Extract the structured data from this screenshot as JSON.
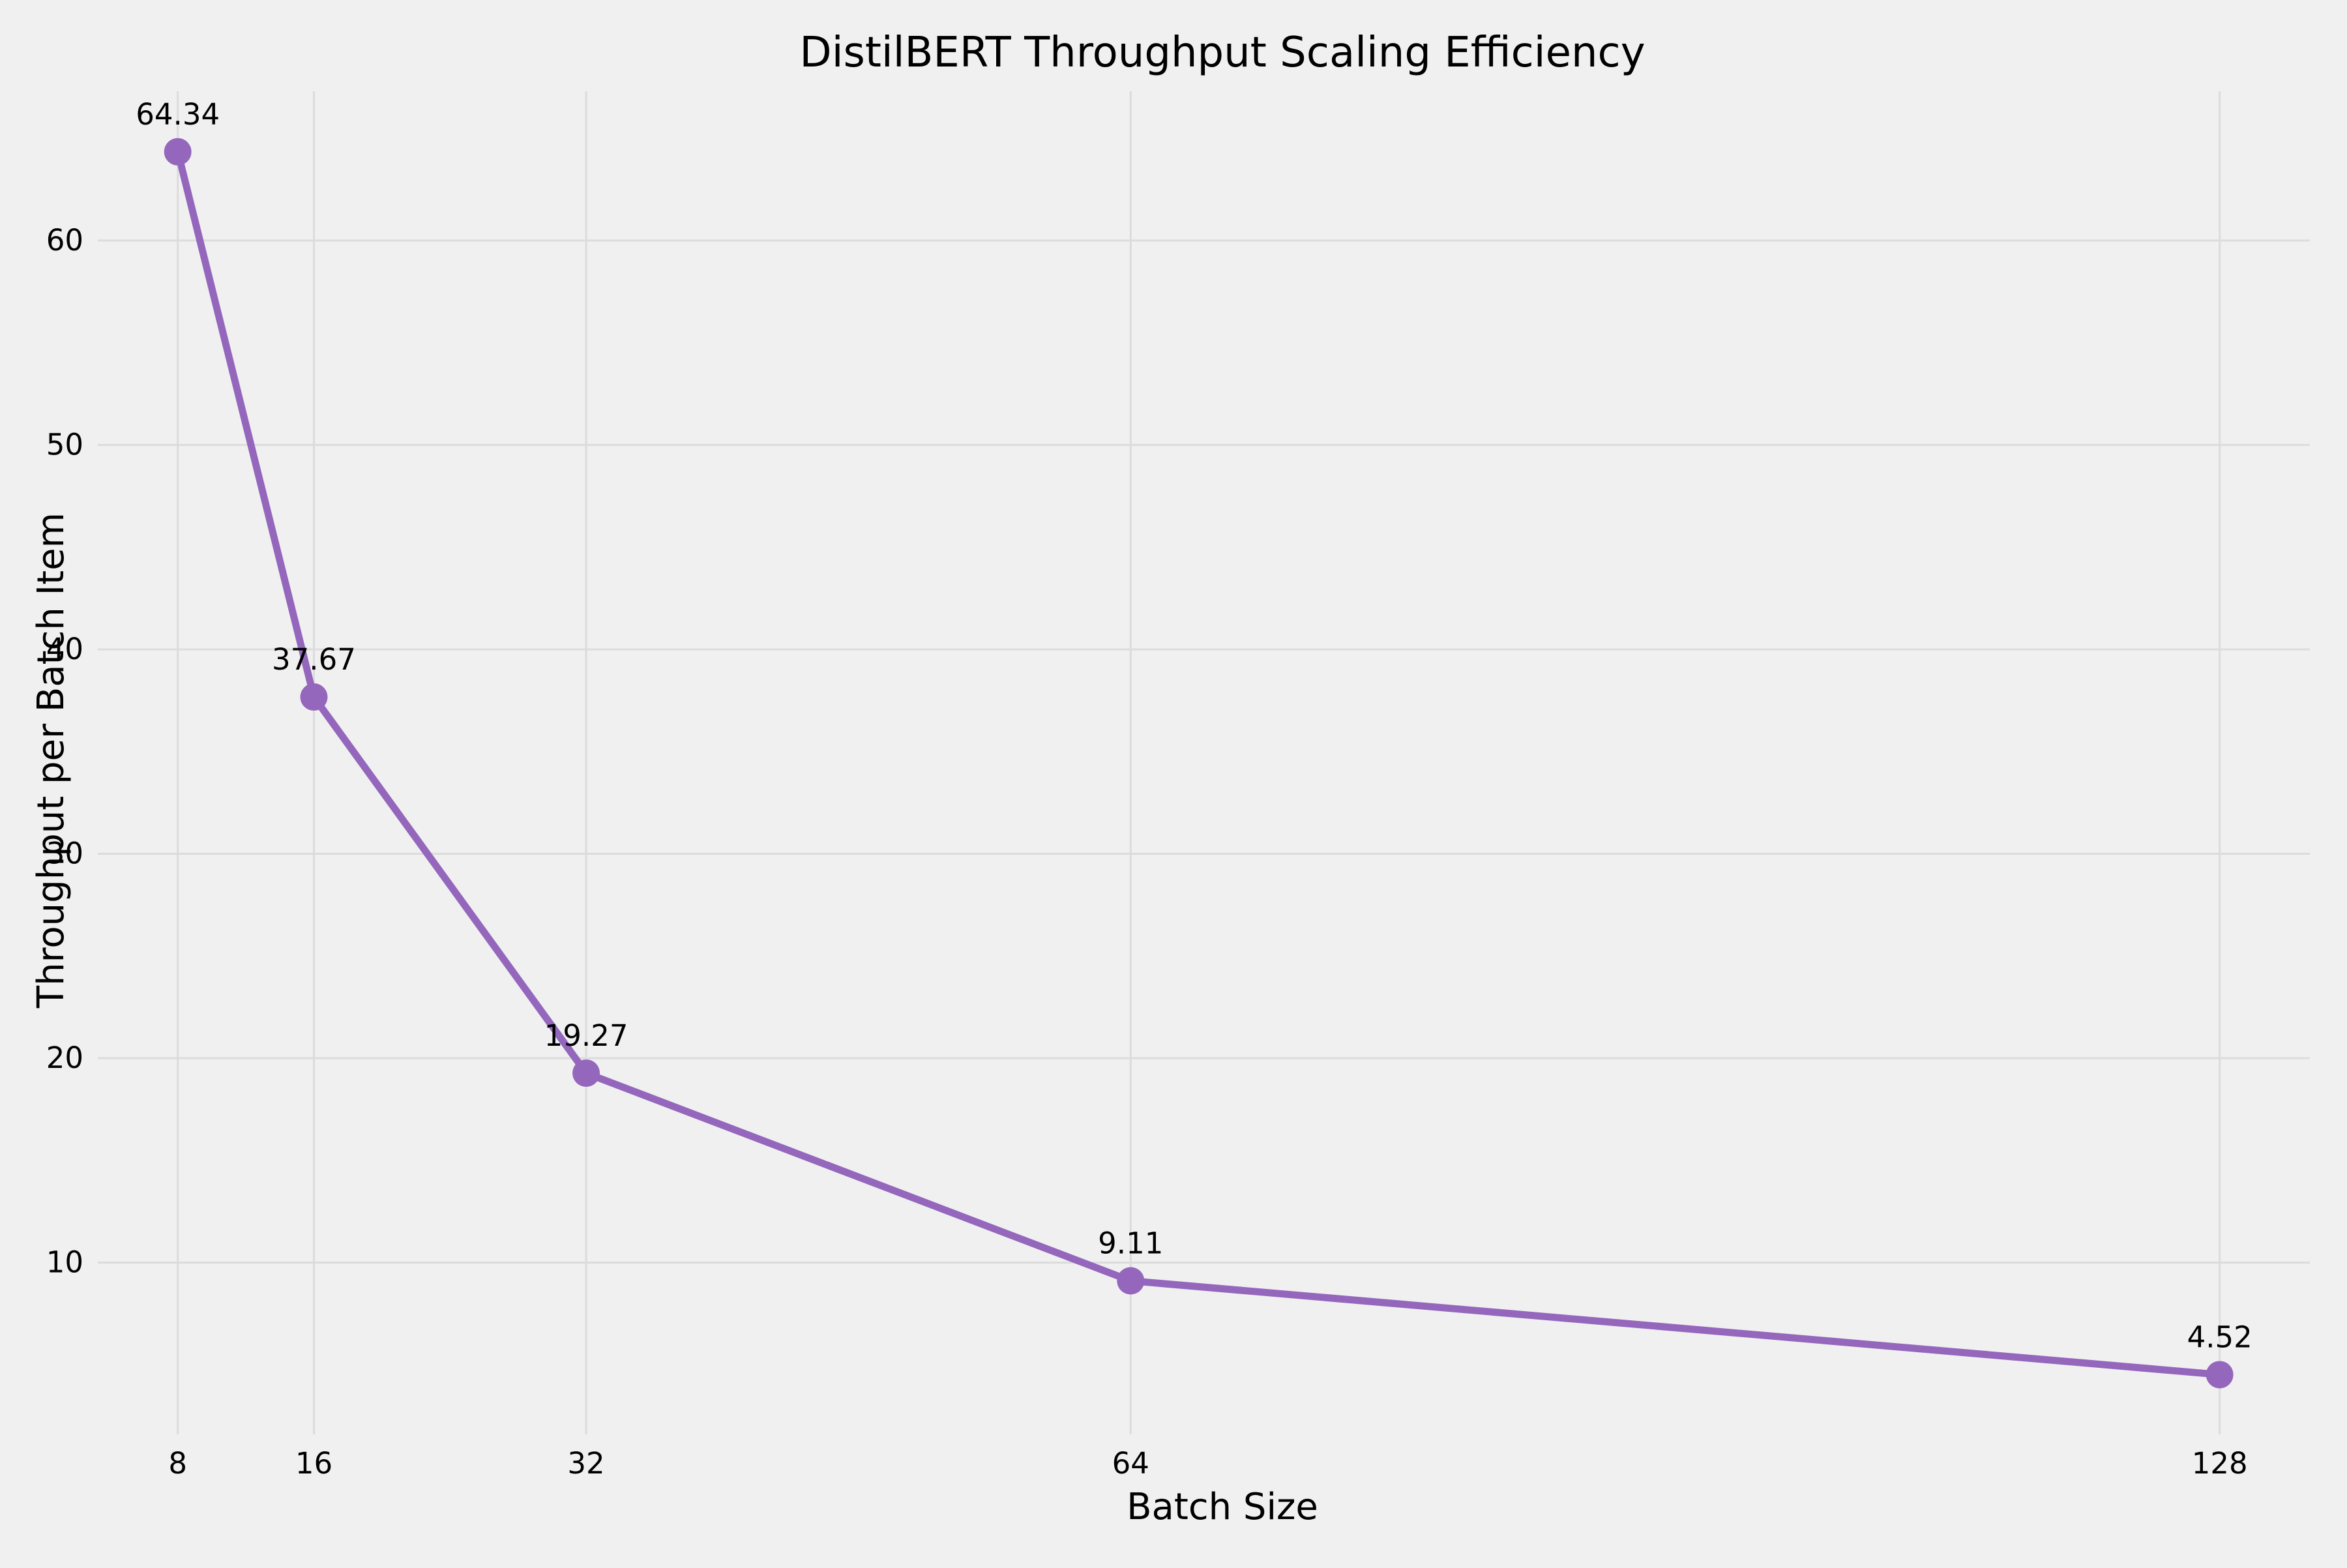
{
  "chart_data": {
    "type": "line",
    "title": "DistilBERT Throughput Scaling Efficiency",
    "xlabel": "Batch Size",
    "ylabel": "Throughput per Batch Item",
    "x": [
      8,
      16,
      32,
      64,
      128
    ],
    "x_tick_labels": [
      "8",
      "16",
      "32",
      "64",
      "128"
    ],
    "xlim": [
      3.3,
      133.3
    ],
    "y_ticks": [
      10,
      20,
      30,
      40,
      50,
      60
    ],
    "y_tick_labels": [
      "10",
      "20",
      "30",
      "40",
      "50",
      "60"
    ],
    "ylim": [
      1.6,
      67.3
    ],
    "grid": true,
    "series": [
      {
        "values": [
          64.34,
          37.67,
          19.27,
          9.11,
          4.52
        ],
        "labels": [
          "64.34",
          "37.67",
          "19.27",
          "9.11",
          "4.52"
        ],
        "color": "#9467bd",
        "marker": "circle"
      }
    ],
    "background_color": "#f0f0f0"
  }
}
